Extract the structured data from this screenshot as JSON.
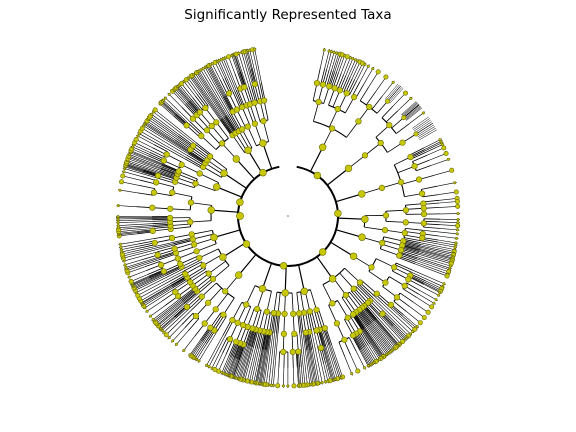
{
  "title": "Significantly Represented Taxa",
  "node_color": "#c8c80a",
  "node_stroke": "#6b6b00",
  "line_color": "#000000"
}
